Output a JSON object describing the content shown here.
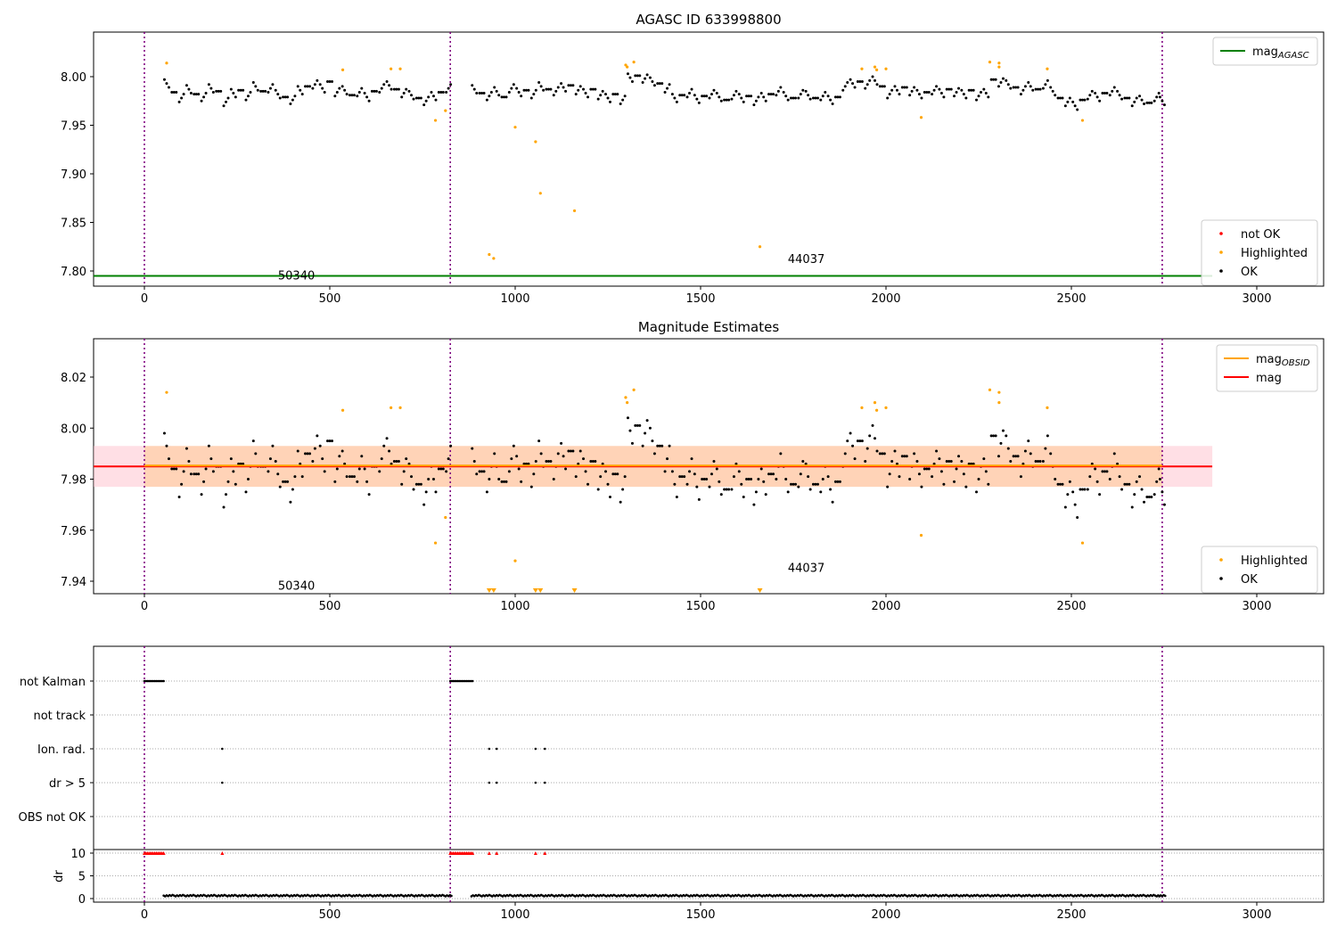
{
  "chart_data": [
    {
      "type": "scatter",
      "title": "AGASC ID 633998800",
      "xlim": [
        -137,
        3180
      ],
      "ylim": [
        7.784,
        8.046
      ],
      "xticks": [
        0,
        500,
        1000,
        1500,
        2000,
        2500,
        3000
      ],
      "yticks": [
        7.8,
        7.85,
        7.9,
        7.95,
        8.0
      ],
      "mag_agasc": 7.795,
      "obsid_boundaries": [
        0,
        825,
        2745
      ],
      "annotations": [
        {
          "text": "50340",
          "x": 410,
          "y": 7.795
        },
        {
          "text": "44037",
          "x": 1785,
          "y": 7.812
        }
      ],
      "legend_top": [
        {
          "label": "mag",
          "sub": "AGASC",
          "color": "#008000",
          "kind": "line"
        }
      ],
      "legend_bottom": [
        {
          "label": "not OK",
          "color": "#ff0000",
          "kind": "dot"
        },
        {
          "label": "Highlighted",
          "color": "#ffa500",
          "kind": "dot"
        },
        {
          "label": "OK",
          "color": "#000000",
          "kind": "dot"
        }
      ]
    },
    {
      "type": "scatter",
      "title": "Magnitude Estimates",
      "xlim": [
        -137,
        3180
      ],
      "ylim": [
        7.935,
        8.035
      ],
      "xticks": [
        0,
        500,
        1000,
        1500,
        2000,
        2500,
        3000
      ],
      "yticks": [
        7.94,
        7.96,
        7.98,
        8.0,
        8.02
      ],
      "mag": 7.985,
      "mag_band": [
        7.977,
        7.993
      ],
      "mag_obsid": 7.985,
      "annotations": [
        {
          "text": "50340",
          "x": 410,
          "y": 7.938
        },
        {
          "text": "44037",
          "x": 1785,
          "y": 7.945
        }
      ],
      "legend_top": [
        {
          "label": "mag",
          "sub": "OBSID",
          "color": "#ffa500",
          "kind": "line"
        },
        {
          "label": "mag",
          "sub": "",
          "color": "#ff0000",
          "kind": "line"
        }
      ],
      "legend_bottom": [
        {
          "label": "Highlighted",
          "color": "#ffa500",
          "kind": "dot"
        },
        {
          "label": "OK",
          "color": "#000000",
          "kind": "dot"
        }
      ]
    },
    {
      "type": "scatter",
      "categories": [
        "not Kalman",
        "not track",
        "Ion. rad.",
        "dr > 5",
        "OBS not OK"
      ],
      "ylabel": "dr",
      "dr_ylim": [
        -0.8,
        10.8
      ],
      "dr_yticks": [
        0,
        5,
        10
      ],
      "flags": {
        "not Kalman": [
          [
            0,
            55
          ],
          [
            825,
            885
          ]
        ],
        "Ion. rad.": [
          210,
          930,
          950,
          1055,
          1080
        ],
        "dr > 5": [
          210,
          930,
          950,
          1055,
          1080
        ]
      },
      "dr_clipped_ranges": [
        [
          0,
          55
        ],
        [
          825,
          885
        ]
      ],
      "dr_clipped_points": [
        210,
        930,
        950,
        1055,
        1080
      ],
      "dr_typical": 0.5
    }
  ],
  "ok_points": {
    "x": [
      60,
      80,
      100,
      120,
      140,
      160,
      180,
      200,
      220,
      240,
      260,
      280,
      300,
      320,
      340,
      360,
      380,
      400,
      420,
      440,
      460,
      480,
      500,
      520,
      540,
      560,
      580,
      600,
      620,
      640,
      660,
      680,
      700,
      720,
      740,
      760,
      780,
      800,
      820,
      890,
      910,
      930,
      950,
      970,
      990,
      1010,
      1030,
      1050,
      1070,
      1090,
      1110,
      1130,
      1150,
      1170,
      1190,
      1210,
      1230,
      1250,
      1270,
      1290,
      1310,
      1330,
      1350,
      1370,
      1390,
      1410,
      1430,
      1450,
      1470,
      1490,
      1510,
      1530,
      1550,
      1570,
      1590,
      1610,
      1630,
      1650,
      1670,
      1690,
      1710,
      1730,
      1750,
      1770,
      1790,
      1810,
      1830,
      1850,
      1870,
      1890,
      1910,
      1930,
      1950,
      1970,
      1990,
      2010,
      2030,
      2050,
      2070,
      2090,
      2110,
      2130,
      2150,
      2170,
      2190,
      2210,
      2230,
      2250,
      2270,
      2290,
      2310,
      2330,
      2350,
      2370,
      2390,
      2410,
      2430,
      2450,
      2470,
      2490,
      2510,
      2530,
      2550,
      2570,
      2590,
      2610,
      2630,
      2650,
      2670,
      2690,
      2710,
      2730,
      2745
    ],
    "mag": [
      7.993,
      7.984,
      7.978,
      7.987,
      7.982,
      7.979,
      7.988,
      7.985,
      7.974,
      7.983,
      7.986,
      7.98,
      7.99,
      7.985,
      7.988,
      7.982,
      7.979,
      7.976,
      7.986,
      7.99,
      7.992,
      7.988,
      7.995,
      7.984,
      7.986,
      7.981,
      7.984,
      7.979,
      7.985,
      7.988,
      7.991,
      7.987,
      7.983,
      7.981,
      7.978,
      7.975,
      7.98,
      7.984,
      7.988,
      7.987,
      7.983,
      7.98,
      7.985,
      7.979,
      7.988,
      7.984,
      7.986,
      7.982,
      7.99,
      7.987,
      7.985,
      7.989,
      7.991,
      7.986,
      7.983,
      7.987,
      7.981,
      7.978,
      7.982,
      7.976,
      7.999,
      8.001,
      7.998,
      7.995,
      7.993,
      7.988,
      7.978,
      7.981,
      7.983,
      7.977,
      7.98,
      7.982,
      7.979,
      7.976,
      7.981,
      7.978,
      7.98,
      7.975,
      7.979,
      7.982,
      7.985,
      7.98,
      7.978,
      7.982,
      7.981,
      7.978,
      7.98,
      7.976,
      7.979,
      7.99,
      7.993,
      7.995,
      7.992,
      7.996,
      7.99,
      7.982,
      7.986,
      7.989,
      7.985,
      7.982,
      7.984,
      7.986,
      7.983,
      7.987,
      7.984,
      7.982,
      7.986,
      7.98,
      7.983,
      7.997,
      7.994,
      7.992,
      7.989,
      7.986,
      7.99,
      7.987,
      7.992,
      7.985,
      7.978,
      7.974,
      7.97,
      7.976,
      7.981,
      7.979,
      7.983,
      7.985,
      7.981,
      7.978,
      7.974,
      7.976,
      7.973,
      7.979,
      7.975
    ]
  },
  "highlighted_points": {
    "x": [
      60,
      535,
      665,
      690,
      785,
      812,
      930,
      942,
      1000,
      1055,
      1068,
      1160,
      1298,
      1302,
      1320,
      1660,
      1935,
      1970,
      1975,
      2000,
      2095,
      2280,
      2305,
      2305,
      2435,
      2530
    ],
    "mag": [
      8.014,
      8.007,
      8.008,
      8.008,
      7.955,
      7.965,
      7.817,
      7.813,
      7.948,
      7.933,
      7.88,
      7.862,
      8.012,
      8.01,
      8.015,
      7.825,
      8.008,
      8.01,
      8.007,
      8.008,
      7.958,
      8.015,
      8.014,
      8.01,
      8.008,
      7.955
    ]
  }
}
